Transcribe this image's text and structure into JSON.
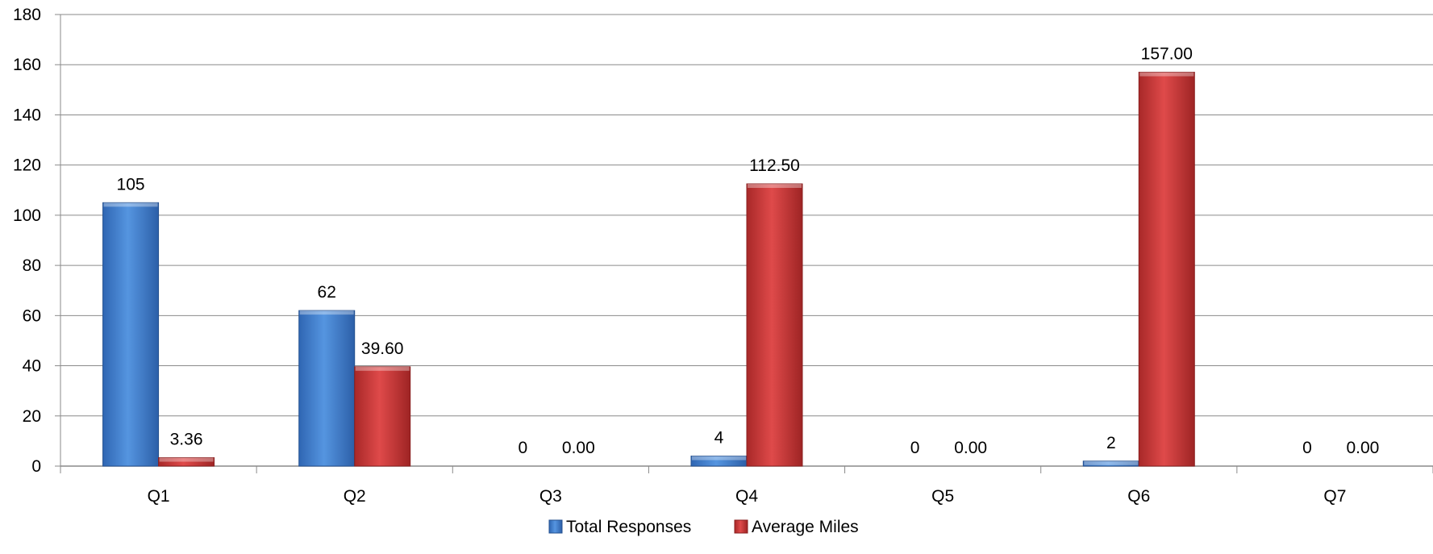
{
  "chart_data": {
    "type": "bar",
    "title": "",
    "xlabel": "",
    "ylabel": "",
    "categories": [
      "Q1",
      "Q2",
      "Q3",
      "Q4",
      "Q5",
      "Q6",
      "Q7"
    ],
    "ylim": [
      0,
      180
    ],
    "yticks": [
      0,
      20,
      40,
      60,
      80,
      100,
      120,
      140,
      160,
      180
    ],
    "ytick_labels": [
      "0",
      "20",
      "40",
      "60",
      "80",
      "100",
      "120",
      "140",
      "160",
      "180"
    ],
    "grid": true,
    "legend_position": "bottom",
    "series": [
      {
        "name": "Total Responses",
        "color": "#4a86d4",
        "values": [
          105,
          62,
          0,
          4,
          0,
          2,
          0
        ],
        "labels": [
          "105",
          "62",
          "0",
          "4",
          "0",
          "2",
          "0"
        ]
      },
      {
        "name": "Average Miles",
        "color": "#cf3e3e",
        "values": [
          3.36,
          39.6,
          0,
          112.5,
          0,
          157,
          0
        ],
        "labels": [
          "3.36",
          "39.60",
          "0.00",
          "112.50",
          "0.00",
          "157.00",
          "0.00"
        ]
      }
    ]
  }
}
